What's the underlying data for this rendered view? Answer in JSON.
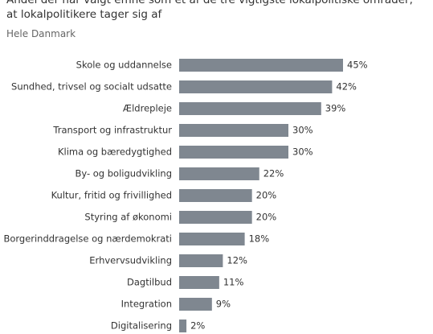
{
  "chart_data": {
    "type": "bar",
    "orientation": "horizontal",
    "title": "Andel der har valgt emne som et af de tre vigtigste lokalpolitiske områder, at lokalpolitikere tager sig af",
    "subtitle": "Hele Danmark",
    "categories": [
      "Skole og uddannelse",
      "Sundhed, trivsel og socialt udsatte",
      "Ældrepleje",
      "Transport og infrastruktur",
      "Klima og bæredygtighed",
      "By- og boligudvikling",
      "Kultur, fritid og frivillighed",
      "Styring af økonomi",
      "Borgerinddragelse og nærdemokrati",
      "Erhvervsudvikling",
      "Dagtilbud",
      "Integration",
      "Digitalisering"
    ],
    "values": [
      45,
      42,
      39,
      30,
      30,
      22,
      20,
      20,
      18,
      12,
      11,
      9,
      2
    ],
    "value_labels": [
      "45%",
      "42%",
      "39%",
      "30%",
      "30%",
      "22%",
      "20%",
      "20%",
      "18%",
      "12%",
      "11%",
      "9%",
      "2%"
    ],
    "color": "#7f8790"
  }
}
